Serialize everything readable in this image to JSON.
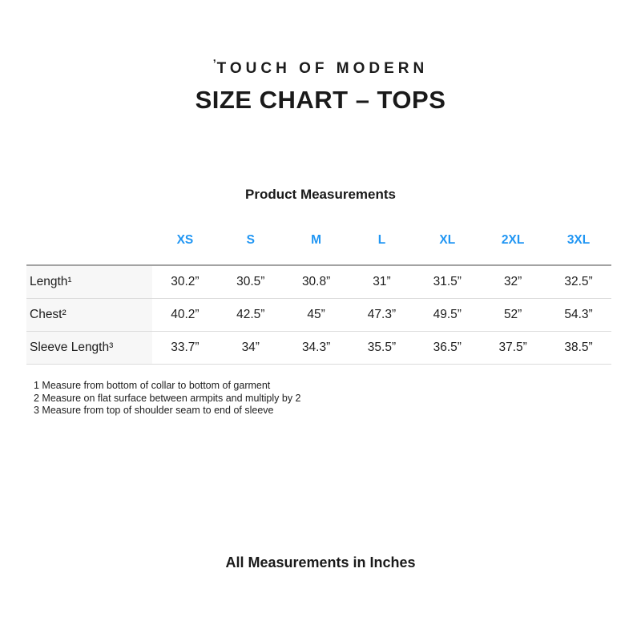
{
  "brand": {
    "logo_mark": "ʼ",
    "logo_text": "TOUCH OF MODERN"
  },
  "page_title": "SIZE CHART – TOPS",
  "table": {
    "caption": "Product Measurements",
    "header_color": "#2196f3",
    "columns": [
      "XS",
      "S",
      "M",
      "L",
      "XL",
      "2XL",
      "3XL"
    ],
    "rows": [
      {
        "label": "Length¹",
        "values": [
          "30.2”",
          "30.5”",
          "30.8”",
          "31”",
          "31.5”",
          "32”",
          "32.5”"
        ]
      },
      {
        "label": "Chest²",
        "values": [
          "40.2”",
          "42.5”",
          "45”",
          "47.3”",
          "49.5”",
          "52”",
          "54.3”"
        ]
      },
      {
        "label": "Sleeve Length³",
        "values": [
          "33.7”",
          "34”",
          "34.3”",
          "35.5”",
          "36.5”",
          "37.5”",
          "38.5”"
        ]
      }
    ]
  },
  "footnotes": [
    "1 Measure from bottom of collar to bottom of garment",
    "2 Measure on flat surface between armpits and multiply by 2",
    "3 Measure from top of shoulder seam to end of sleeve"
  ],
  "footer_note": "All Measurements in Inches"
}
